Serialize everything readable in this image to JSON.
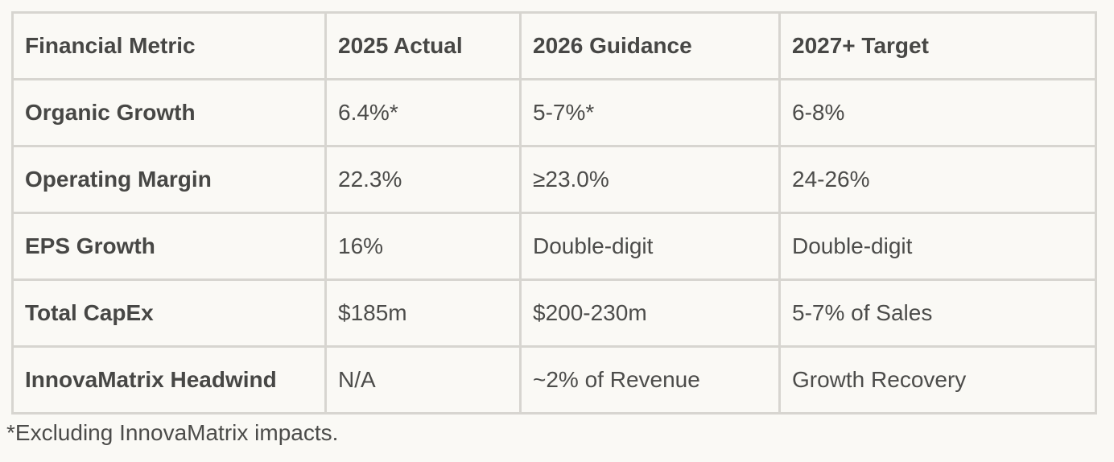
{
  "table": {
    "headers": [
      "Financial Metric",
      "2025 Actual",
      "2026 Guidance",
      "2027+ Target"
    ],
    "rows": [
      [
        "Organic Growth",
        "6.4%*",
        "5-7%*",
        "6-8%"
      ],
      [
        "Operating Margin",
        "22.3%",
        "≥23.0%",
        "24-26%"
      ],
      [
        "EPS Growth",
        "16%",
        "Double-digit",
        "Double-digit"
      ],
      [
        "Total CapEx",
        "$185m",
        "$200-230m",
        "5-7% of Sales"
      ],
      [
        "InnovaMatrix Headwind",
        "N/A",
        "~2% of Revenue",
        "Growth Recovery"
      ]
    ]
  },
  "footnote": "*Excluding InnovaMatrix impacts.",
  "colors": {
    "page_background": "#faf9f5",
    "cell_background": "#faf9f5",
    "border": "#d7d5d0",
    "text": "#4a4a48"
  }
}
